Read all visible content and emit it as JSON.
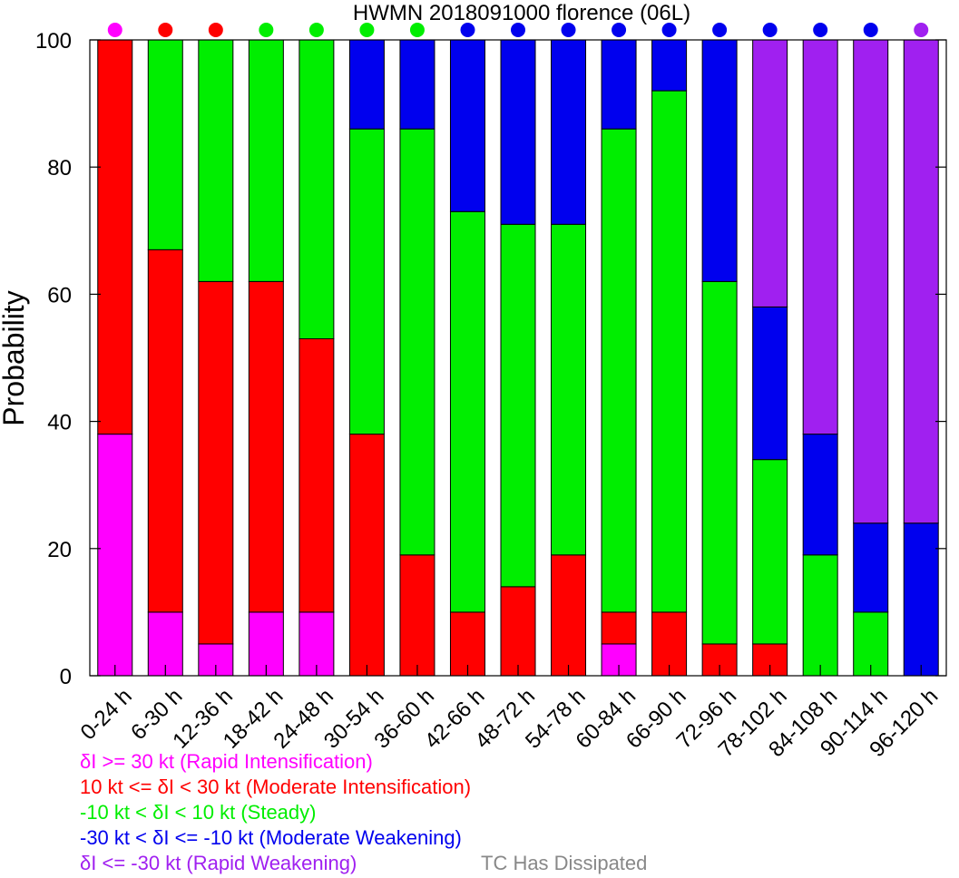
{
  "chart_data": {
    "type": "bar",
    "stacked": true,
    "title": "HWMN 2018091000 florence (06L)",
    "ylabel": "Probability",
    "xlabel": "",
    "ylim": [
      0,
      100
    ],
    "yticks": [
      0,
      20,
      40,
      60,
      80,
      100
    ],
    "categories": [
      "0-24 h",
      "6-30 h",
      "12-36 h",
      "18-42 h",
      "24-48 h",
      "30-54 h",
      "36-60 h",
      "42-66 h",
      "48-72 h",
      "54-78 h",
      "60-84 h",
      "66-90 h",
      "72-96 h",
      "78-102 h",
      "84-108 h",
      "90-114 h",
      "96-120 h"
    ],
    "series": [
      {
        "name": "δI >= 30 kt (Rapid Intensification)",
        "color": "#ff00ff",
        "values": [
          38,
          10,
          5,
          10,
          10,
          0,
          0,
          0,
          0,
          0,
          5,
          0,
          0,
          0,
          0,
          0,
          0
        ]
      },
      {
        "name": "10 kt <= δI < 30 kt (Moderate Intensification)",
        "color": "#ff0000",
        "values": [
          62,
          57,
          57,
          52,
          43,
          38,
          19,
          10,
          14,
          19,
          5,
          10,
          5,
          5,
          0,
          0,
          0
        ]
      },
      {
        "name": "-10 kt < δI < 10 kt (Steady)",
        "color": "#00ee00",
        "values": [
          0,
          33,
          38,
          38,
          47,
          48,
          67,
          63,
          57,
          52,
          76,
          82,
          57,
          29,
          19,
          10,
          0
        ]
      },
      {
        "name": "-30 kt < δI <= -10 kt (Moderate Weakening)",
        "color": "#0000ee",
        "values": [
          0,
          0,
          0,
          0,
          0,
          14,
          14,
          27,
          29,
          29,
          14,
          8,
          38,
          24,
          19,
          14,
          24
        ]
      },
      {
        "name": "δI <= -30 kt (Rapid Weakening)",
        "color": "#a020f0",
        "values": [
          0,
          0,
          0,
          0,
          0,
          0,
          0,
          0,
          0,
          0,
          0,
          0,
          0,
          42,
          62,
          76,
          76
        ]
      }
    ],
    "top_markers": [
      "#ff00ff",
      "#ff0000",
      "#ff0000",
      "#00ee00",
      "#00ee00",
      "#00ee00",
      "#00ee00",
      "#0000ee",
      "#0000ee",
      "#0000ee",
      "#0000ee",
      "#0000ee",
      "#0000ee",
      "#0000ee",
      "#0000ee",
      "#0000ee",
      "#a020f0"
    ],
    "dissipated_label": "TC Has Dissipated",
    "dissipated_color": "#888888",
    "grid": false,
    "legend_position": "bottom-left"
  }
}
